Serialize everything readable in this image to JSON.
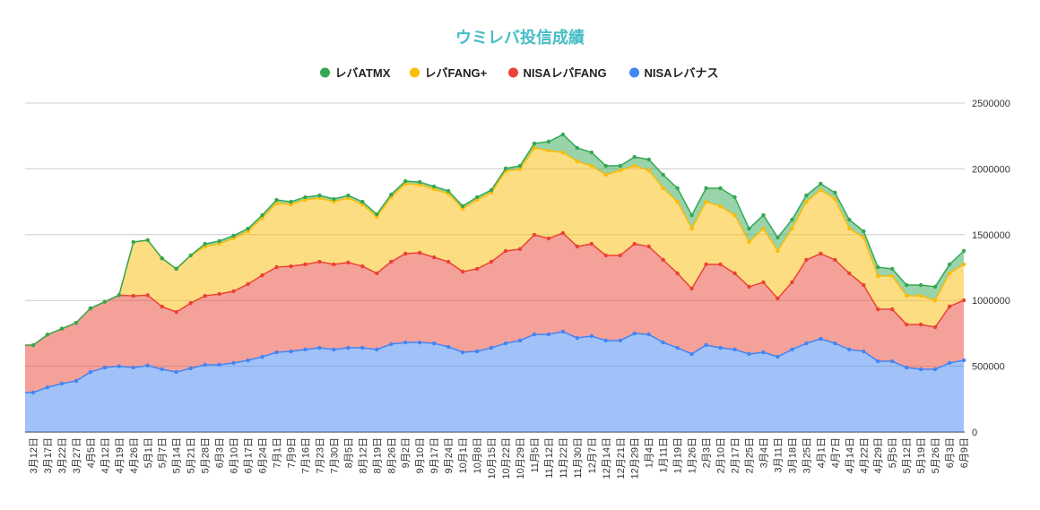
{
  "chart_data": {
    "type": "area",
    "stacked": true,
    "title": "ウミレバ投信成績",
    "title_color": "#46bdc6",
    "legend_position": "top",
    "grid": true,
    "ylim": [
      0,
      2500000
    ],
    "yticks": [
      0,
      500000,
      1000000,
      1500000,
      2000000,
      2500000
    ],
    "categories": [
      "3月12日",
      "3月17日",
      "3月22日",
      "3月27日",
      "4月5日",
      "4月12日",
      "4月19日",
      "4月26日",
      "5月1日",
      "5月7日",
      "5月14日",
      "5月21日",
      "5月28日",
      "6月3日",
      "6月10日",
      "6月17日",
      "6月24日",
      "7月1日",
      "7月9日",
      "7月16日",
      "7月23日",
      "7月30日",
      "8月5日",
      "8月12日",
      "8月19日",
      "8月26日",
      "9月2日",
      "9月10日",
      "9月17日",
      "9月24日",
      "10月1日",
      "10月8日",
      "10月15日",
      "10月22日",
      "10月29日",
      "11月5日",
      "11月12日",
      "11月22日",
      "11月30日",
      "12月7日",
      "12月14日",
      "12月21日",
      "12月29日",
      "1月4日",
      "1月11日",
      "1月19日",
      "1月26日",
      "2月3日",
      "2月10日",
      "2月17日",
      "2月25日",
      "3月4日",
      "3月11日",
      "3月18日",
      "3月25日",
      "4月1日",
      "4月7日",
      "4月14日",
      "4月22日",
      "4月29日",
      "5月5日",
      "5月12日",
      "5月19日",
      "5月26日",
      "6月3日",
      "6月9日"
    ],
    "series": [
      {
        "name": "NISAレバナス",
        "color": "#4285f4",
        "values": [
          300000,
          340000,
          368000,
          388000,
          456000,
          490000,
          500000,
          490000,
          505000,
          477000,
          456000,
          484000,
          511000,
          511000,
          525000,
          545000,
          572000,
          606000,
          613000,
          627000,
          640000,
          627000,
          640000,
          640000,
          627000,
          668000,
          681000,
          681000,
          674000,
          647000,
          606000,
          613000,
          640000,
          674000,
          695000,
          742000,
          742000,
          763000,
          715000,
          729000,
          695000,
          695000,
          749000,
          742000,
          681000,
          640000,
          593000,
          661000,
          640000,
          627000,
          593000,
          606000,
          572000,
          627000,
          674000,
          708000,
          674000,
          627000,
          613000,
          538000,
          538000,
          490000,
          477000,
          477000,
          525000,
          545000
        ]
      },
      {
        "name": "NISAレバFANG",
        "color": "#ea4335",
        "values": [
          360000,
          400000,
          417000,
          442000,
          484000,
          500000,
          540000,
          545000,
          535000,
          476000,
          456000,
          496000,
          524000,
          538000,
          545000,
          579000,
          620000,
          647000,
          647000,
          647000,
          654000,
          647000,
          648000,
          620000,
          579000,
          626000,
          675000,
          681000,
          654000,
          647000,
          613000,
          627000,
          654000,
          702000,
          695000,
          757000,
          729000,
          749000,
          695000,
          701000,
          647000,
          647000,
          681000,
          668000,
          627000,
          566000,
          497000,
          613000,
          634000,
          579000,
          511000,
          532000,
          443000,
          511000,
          634000,
          648000,
          634000,
          579000,
          504000,
          395000,
          395000,
          327000,
          340000,
          320000,
          429000,
          456000
        ]
      },
      {
        "name": "レバFANG+",
        "color": "#fbbc04",
        "values": [
          0,
          0,
          0,
          0,
          0,
          0,
          0,
          409000,
          418000,
          367000,
          328000,
          362000,
          375000,
          382000,
          402000,
          402000,
          436000,
          487000,
          470000,
          491000,
          484000,
          477000,
          490000,
          470000,
          429000,
          491000,
          531000,
          518000,
          518000,
          518000,
          478000,
          525000,
          525000,
          607000,
          608000,
          660000,
          668000,
          613000,
          647000,
          593000,
          613000,
          647000,
          593000,
          579000,
          545000,
          544000,
          456000,
          476000,
          442000,
          442000,
          340000,
          408000,
          361000,
          408000,
          442000,
          483000,
          463000,
          340000,
          361000,
          252000,
          252000,
          218000,
          218000,
          204000,
          252000,
          273000
        ]
      },
      {
        "name": "レバATMX",
        "color": "#34a853",
        "values": [
          0,
          0,
          0,
          0,
          0,
          0,
          0,
          0,
          0,
          0,
          0,
          0,
          20000,
          20000,
          20000,
          20000,
          20000,
          24000,
          20000,
          20000,
          20000,
          20000,
          20000,
          20000,
          20000,
          20000,
          20000,
          20000,
          20000,
          20000,
          20000,
          20000,
          20000,
          20000,
          25000,
          34000,
          68000,
          136000,
          102000,
          102000,
          68000,
          34000,
          68000,
          82000,
          102000,
          103000,
          102000,
          103000,
          137000,
          137000,
          102000,
          102000,
          102000,
          68000,
          48000,
          48000,
          48000,
          68000,
          48000,
          68000,
          55000,
          82000,
          82000,
          103000,
          68000,
          102000
        ]
      }
    ],
    "legend_order": [
      "レバATMX",
      "レバFANG+",
      "NISAレバFANG",
      "NISAレバナス"
    ]
  }
}
